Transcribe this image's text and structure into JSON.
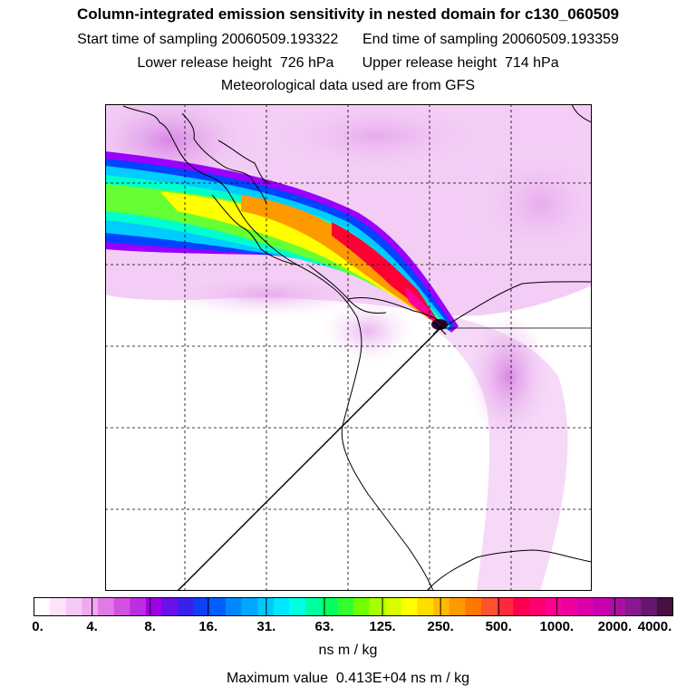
{
  "header": {
    "title": "Column-integrated emission sensitivity in nested domain for c130_060509",
    "start_label": "Start time of sampling",
    "start_value": "20060509.193322",
    "end_label": "End time of sampling",
    "end_value": "20060509.193359",
    "lower_label": "Lower release height",
    "lower_value": "726 hPa",
    "upper_label": "Upper release height",
    "upper_value": "714 hPa",
    "met_text": "Meteorological data used are from GFS"
  },
  "map": {
    "gridlines": "dashed",
    "release_marker": "cross",
    "plume_colors": [
      "#9900ff",
      "#0044ff",
      "#00ccff",
      "#00ffcc",
      "#66ff33",
      "#ffff00",
      "#ff9900",
      "#ff0033",
      "#ff0099",
      "#330033"
    ]
  },
  "colorbar": {
    "tick_labels": [
      "0.",
      "4.",
      "8.",
      "16.",
      "31.",
      "63.",
      "125.",
      "250.",
      "500.",
      "1000.",
      "2000.",
      "4000."
    ],
    "segment_colors": [
      "#ffffff",
      "#fbe3fb",
      "#f6c8f6",
      "#f0a8f0",
      "#e07ae6",
      "#d251e0",
      "#bd2ee0",
      "#a000e6",
      "#6a10e8",
      "#3a20ee",
      "#1040f4",
      "#0060ff",
      "#0088ff",
      "#00a8ff",
      "#00c8ff",
      "#00e8ff",
      "#00ffe0",
      "#00ffa0",
      "#00ff60",
      "#30ff30",
      "#70ff00",
      "#a8ff00",
      "#d8ff00",
      "#ffff00",
      "#ffdd00",
      "#ffbb00",
      "#ff9900",
      "#ff7700",
      "#ff5030",
      "#ff2840",
      "#ff0050",
      "#ff0070",
      "#ff0090",
      "#ee00a0",
      "#dd00aa",
      "#c800b0",
      "#aa10a0",
      "#881890",
      "#661870",
      "#441040"
    ],
    "units": "ns m / kg"
  },
  "footer": {
    "max_label": "Maximum value",
    "max_value": "0.413E+04 ns m / kg"
  }
}
